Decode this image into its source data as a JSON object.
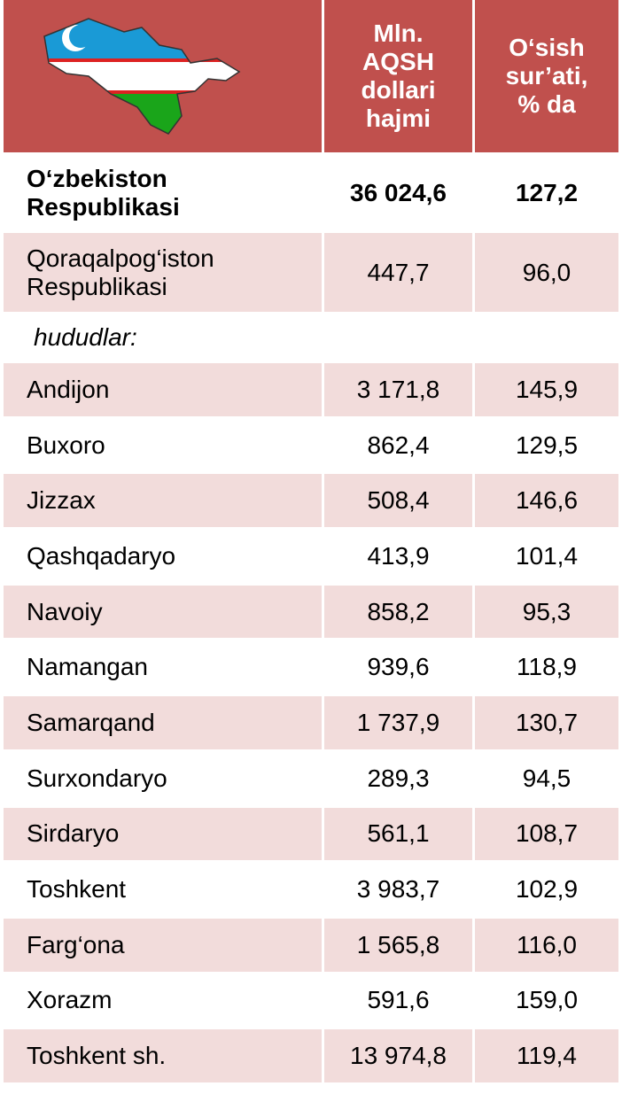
{
  "header": {
    "columns": [
      "Mln. AQSH dollari hajmi",
      "O‘sish sur’ati, % da"
    ]
  },
  "total": {
    "name": "O‘zbekiston Respublikasi",
    "volume": "36 024,6",
    "growth": "127,2"
  },
  "karakalpak": {
    "name": "Qoraqalpog‘iston Respublikasi",
    "volume": "447,7",
    "growth": "96,0"
  },
  "section_label": "hududlar:",
  "rows": [
    [
      "Andijon",
      "3 171,8",
      "145,9"
    ],
    [
      "Buxoro",
      "862,4",
      "129,5"
    ],
    [
      "Jizzax",
      "508,4",
      "146,6"
    ],
    [
      "Qashqadaryo",
      "413,9",
      "101,4"
    ],
    [
      "Navoiy",
      "858,2",
      "95,3"
    ],
    [
      "Namangan",
      "939,6",
      "118,9"
    ],
    [
      "Samarqand",
      "1 737,9",
      "130,7"
    ],
    [
      "Surxondaryo",
      "289,3",
      "94,5"
    ],
    [
      "Sirdaryo",
      "561,1",
      "108,7"
    ],
    [
      "Toshkent",
      "3 983,7",
      "102,9"
    ],
    [
      "Farg‘ona",
      "1 565,8",
      "116,0"
    ],
    [
      "Xorazm",
      "591,6",
      "159,0"
    ],
    [
      "Toshkent sh.",
      "13 974,8",
      "119,4"
    ]
  ]
}
